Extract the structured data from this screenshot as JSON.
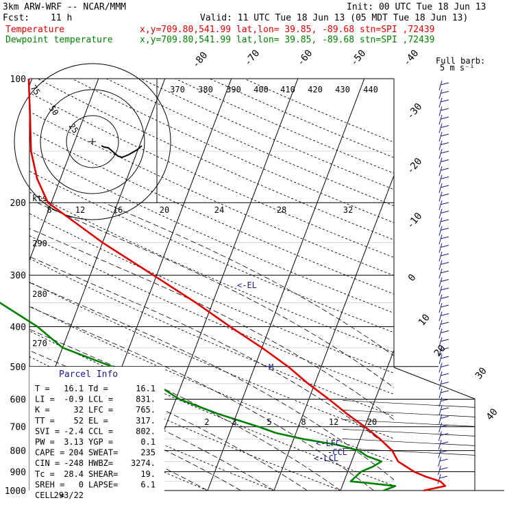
{
  "header": {
    "model": "3km ARW-WRF -- NCAR/MMM",
    "init": "Init: 00 UTC Tue 18 Jun 13",
    "fcst_label": "Fcst:",
    "fcst_value": "11 h",
    "valid": "Valid: 11 UTC Tue 18 Jun 13 (05 MDT Tue 18 Jun 13)",
    "temp_label": "Temperature",
    "temp_meta": "x,y=709.80,541.99   lat,lon= 39.85, -89.68   stn=SPI ,72439",
    "dew_label": "Dewpoint temperature",
    "dew_meta": "x,y=709.80,541.99   lat,lon= 39.85, -89.68   stn=SPI ,72439"
  },
  "colors": {
    "temperature": "#e00000",
    "dewpoint": "#008000",
    "labels": "#1a1a8c",
    "grid": "#000000"
  },
  "wind_barb_label": "Full barb:\n5 m s⁻¹",
  "hodograph": {
    "unit_label": "kts",
    "ring_labels": [
      "25",
      "50",
      "75"
    ]
  },
  "parcel_info": {
    "title": "Parcel Info",
    "rows": [
      [
        "T  =",
        "16.1",
        "Td =",
        "16.1"
      ],
      [
        "LI =",
        "-0.9",
        "LCL =",
        "831."
      ],
      [
        "K  =",
        "32",
        "LFC =",
        "765."
      ],
      [
        "TT =",
        "52",
        "EL  =",
        "317."
      ],
      [
        "SVI =",
        "-2.4",
        "CCL =",
        "802."
      ],
      [
        "PW =",
        "3.13",
        "YGP =",
        "0.1"
      ],
      [
        "CAPE =",
        "204",
        "SWEAT=",
        "235"
      ],
      [
        "CIN =",
        "-248",
        "HWBZ=",
        "3274."
      ],
      [
        "Tc =",
        "28.4",
        "SHEAR=",
        "19."
      ],
      [
        "SREH =",
        "0",
        "LAPSE=",
        "6.1"
      ],
      [
        "CELL =",
        "293/22",
        "",
        ""
      ]
    ]
  },
  "level_markers": {
    "el": "<-EL",
    "lfc": "<-LFC",
    "lcl": "<-LCL",
    "ccl": "-CCL"
  },
  "chart_data": {
    "type": "line",
    "subtype": "skew-T log-P",
    "pressure_levels": [
      100,
      200,
      300,
      400,
      500,
      600,
      700,
      800,
      900,
      1000
    ],
    "isotherm_labels": [
      "-80",
      "-70",
      "-60",
      "-50",
      "-40",
      "-30",
      "-20",
      "-10",
      "0",
      "10",
      "20",
      "30",
      "40"
    ],
    "theta_labels": [
      "370",
      "380",
      "390",
      "400",
      "410",
      "420",
      "430",
      "440",
      "290",
      "280",
      "270"
    ],
    "mixing_ratio_labels": [
      "2",
      "3",
      "5",
      "8",
      "12",
      "20"
    ],
    "wind_speed_labels": [
      "8",
      "12",
      "16",
      "20",
      "24",
      "28",
      "32"
    ],
    "series": [
      {
        "name": "Temperature",
        "color": "#e00000",
        "points": [
          [
            1000,
            22.5
          ],
          [
            975,
            25.5
          ],
          [
            950,
            24.5
          ],
          [
            925,
            22.0
          ],
          [
            900,
            20.0
          ],
          [
            850,
            17.0
          ],
          [
            800,
            15.5
          ],
          [
            750,
            13.0
          ],
          [
            700,
            10.0
          ],
          [
            650,
            6.5
          ],
          [
            600,
            3.0
          ],
          [
            550,
            -1.0
          ],
          [
            500,
            -5.0
          ],
          [
            450,
            -10.0
          ],
          [
            400,
            -16.0
          ],
          [
            350,
            -22.5
          ],
          [
            300,
            -30.5
          ],
          [
            250,
            -40.0
          ],
          [
            200,
            -50.5
          ],
          [
            175,
            -53.5
          ],
          [
            150,
            -56.0
          ],
          [
            125,
            -58.0
          ],
          [
            100,
            -60.5
          ]
        ]
      },
      {
        "name": "Dewpoint temperature",
        "color": "#008000",
        "points": [
          [
            1000,
            16.5
          ],
          [
            975,
            18.0
          ],
          [
            960,
            14.0
          ],
          [
            950,
            11.0
          ],
          [
            925,
            11.5
          ],
          [
            900,
            12.0
          ],
          [
            875,
            13.5
          ],
          [
            850,
            14.5
          ],
          [
            825,
            12.0
          ],
          [
            800,
            10.5
          ],
          [
            775,
            7.0
          ],
          [
            750,
            1.5
          ],
          [
            725,
            -3.0
          ],
          [
            700,
            -6.0
          ],
          [
            650,
            -13.0
          ],
          [
            600,
            -19.5
          ],
          [
            550,
            -24.0
          ],
          [
            500,
            -31.5
          ],
          [
            450,
            -40.0
          ],
          [
            400,
            -45.0
          ],
          [
            350,
            -52.0
          ],
          [
            325,
            -59.0
          ],
          [
            300,
            -62.0
          ],
          [
            275,
            -66.0
          ],
          [
            250,
            -71.0
          ],
          [
            225,
            -75.0
          ],
          [
            200,
            -78.0
          ],
          [
            175,
            -81.0
          ],
          [
            150,
            -84.0
          ],
          [
            125,
            -79.0
          ],
          [
            110,
            -74.0
          ],
          [
            100,
            -71.0
          ]
        ]
      }
    ],
    "hodograph_points": [
      [
        -31,
        -8
      ],
      [
        -27,
        -9
      ],
      [
        -23,
        -10
      ],
      [
        -18,
        -13
      ],
      [
        -12,
        -17
      ],
      [
        -6,
        -19
      ],
      [
        0,
        -15
      ],
      [
        4,
        -11
      ],
      [
        6,
        -5
      ]
    ]
  }
}
